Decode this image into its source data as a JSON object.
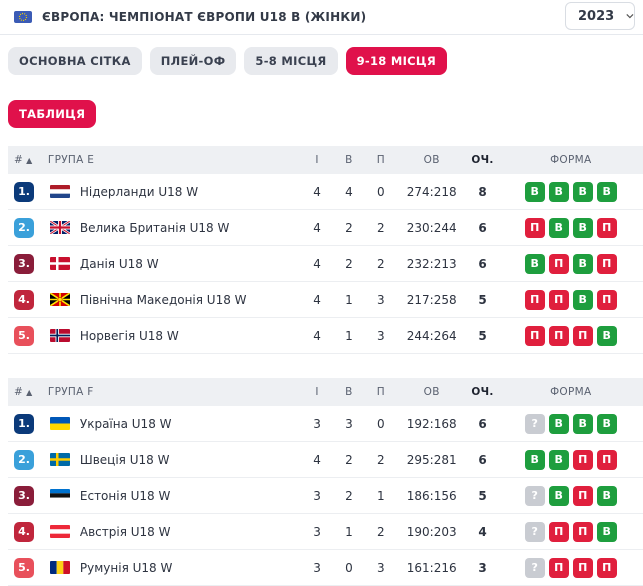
{
  "header": {
    "tournament": "ЄВРОПА: ЧЕМПІОНАТ ЄВРОПИ U18 В (ЖІНКИ)",
    "year": "2023"
  },
  "tabs": [
    "ОСНОВНА СІТКА",
    "ПЛЕЙ-ОФ",
    "5-8 МІСЦЯ",
    "9-18 МІСЦЯ"
  ],
  "subtab": "ТАБЛИЦЯ",
  "columns": {
    "rank": "#",
    "i": "І",
    "w": "В",
    "l": "П",
    "goals": "ОВ",
    "pts": "ОЧ.",
    "form": "ФОРМА"
  },
  "groups": [
    {
      "name": "ГРУПА Е",
      "rows": [
        {
          "rank": "1.",
          "team": "Нідерланди U18 W",
          "flag": "nl",
          "i": "4",
          "w": "4",
          "l": "0",
          "goals": "274:218",
          "pts": "8",
          "form": [
            "В",
            "В",
            "В",
            "В"
          ]
        },
        {
          "rank": "2.",
          "team": "Велика Британія U18 W",
          "flag": "gb",
          "i": "4",
          "w": "2",
          "l": "2",
          "goals": "230:244",
          "pts": "6",
          "form": [
            "П",
            "В",
            "В",
            "П"
          ]
        },
        {
          "rank": "3.",
          "team": "Данія U18 W",
          "flag": "dk",
          "i": "4",
          "w": "2",
          "l": "2",
          "goals": "232:213",
          "pts": "6",
          "form": [
            "В",
            "П",
            "В",
            "П"
          ]
        },
        {
          "rank": "4.",
          "team": "Північна Македонія U18 W",
          "flag": "mk",
          "i": "4",
          "w": "1",
          "l": "3",
          "goals": "217:258",
          "pts": "5",
          "form": [
            "П",
            "П",
            "В",
            "П"
          ]
        },
        {
          "rank": "5.",
          "team": "Норвегія U18 W",
          "flag": "no",
          "i": "4",
          "w": "1",
          "l": "3",
          "goals": "244:264",
          "pts": "5",
          "form": [
            "П",
            "П",
            "П",
            "В"
          ]
        }
      ]
    },
    {
      "name": "ГРУПА F",
      "rows": [
        {
          "rank": "1.",
          "team": "Україна U18 W",
          "flag": "ua",
          "i": "3",
          "w": "3",
          "l": "0",
          "goals": "192:168",
          "pts": "6",
          "form": [
            "?",
            "В",
            "В",
            "В"
          ]
        },
        {
          "rank": "2.",
          "team": "Швеція U18 W",
          "flag": "se",
          "i": "4",
          "w": "2",
          "l": "2",
          "goals": "295:281",
          "pts": "6",
          "form": [
            "В",
            "В",
            "П",
            "П"
          ]
        },
        {
          "rank": "3.",
          "team": "Естонія U18 W",
          "flag": "ee",
          "i": "3",
          "w": "2",
          "l": "1",
          "goals": "186:156",
          "pts": "5",
          "form": [
            "?",
            "В",
            "П",
            "В"
          ]
        },
        {
          "rank": "4.",
          "team": "Австрія U18 W",
          "flag": "at",
          "i": "3",
          "w": "1",
          "l": "2",
          "goals": "190:203",
          "pts": "4",
          "form": [
            "?",
            "П",
            "П",
            "В"
          ]
        },
        {
          "rank": "5.",
          "team": "Румунія U18 W",
          "flag": "ro",
          "i": "3",
          "w": "0",
          "l": "3",
          "goals": "161:216",
          "pts": "3",
          "form": [
            "?",
            "П",
            "П",
            "П"
          ]
        }
      ]
    }
  ],
  "colors": {
    "accent": "#e0114b",
    "win": "#1e9e3e",
    "loss": "#e01f3d"
  }
}
